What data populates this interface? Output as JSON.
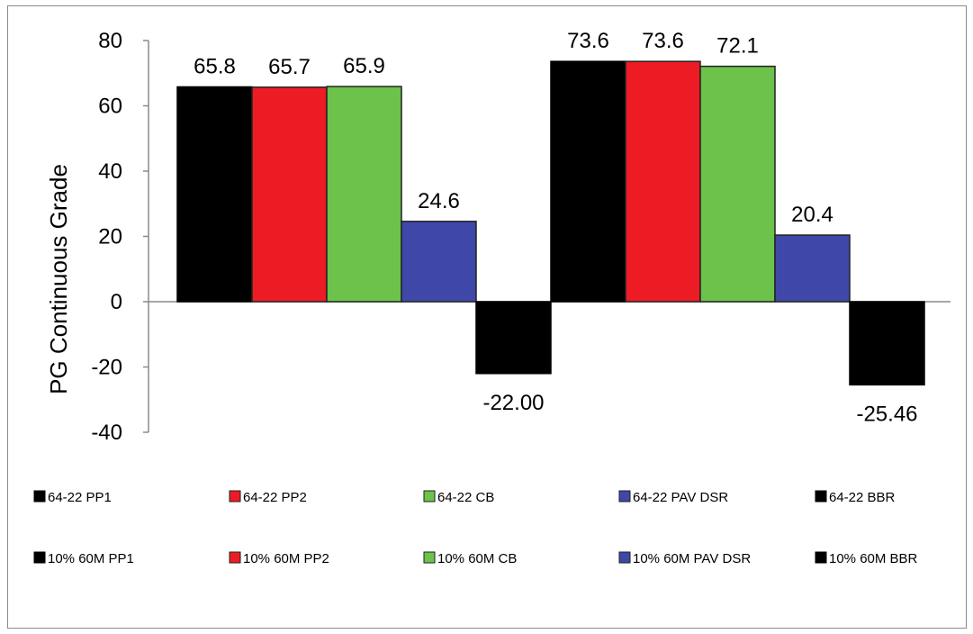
{
  "chart_data": {
    "type": "bar",
    "title": "",
    "xlabel": "",
    "ylabel": "PG Continuous Grade",
    "ylim": [
      -40,
      80
    ],
    "yticks": [
      80,
      60,
      40,
      20,
      0,
      -20,
      -40
    ],
    "grid": false,
    "legend_position": "bottom",
    "groups": [
      {
        "bars": [
          {
            "name": "64-22 PP1",
            "value": 65.8,
            "label": "65.8",
            "color": "#000000"
          },
          {
            "name": "64-22 PP2",
            "value": 65.7,
            "label": "65.7",
            "color": "#ed1c24"
          },
          {
            "name": "64-22 CB",
            "value": 65.9,
            "label": "65.9",
            "color": "#6cc24a"
          },
          {
            "name": "64-22 PAV DSR",
            "value": 24.6,
            "label": "24.6",
            "color": "#3f48a8"
          },
          {
            "name": "64-22 BBR",
            "value": -22.0,
            "label": "-22.00",
            "color": "#000000"
          }
        ]
      },
      {
        "bars": [
          {
            "name": "10% 60M PP1",
            "value": 73.6,
            "label": "73.6",
            "color": "#000000"
          },
          {
            "name": "10% 60M PP2",
            "value": 73.6,
            "label": "73.6",
            "color": "#ed1c24"
          },
          {
            "name": "10% 60M CB",
            "value": 72.1,
            "label": "72.1",
            "color": "#6cc24a"
          },
          {
            "name": "10% 60M PAV DSR",
            "value": 20.4,
            "label": "20.4",
            "color": "#3f48a8"
          },
          {
            "name": "10% 60M BBR",
            "value": -25.46,
            "label": "-25.46",
            "color": "#000000"
          }
        ]
      }
    ],
    "legend": [
      {
        "label": "64-22 PP1",
        "color": "#000000"
      },
      {
        "label": "64-22 PP2",
        "color": "#ed1c24"
      },
      {
        "label": "64-22 CB",
        "color": "#6cc24a"
      },
      {
        "label": "64-22 PAV DSR",
        "color": "#3f48a8"
      },
      {
        "label": "64-22 BBR",
        "color": "#000000"
      },
      {
        "label": "10% 60M PP1",
        "color": "#000000"
      },
      {
        "label": "10% 60M PP2",
        "color": "#ed1c24"
      },
      {
        "label": "10% 60M CB",
        "color": "#6cc24a"
      },
      {
        "label": "10% 60M PAV DSR",
        "color": "#3f48a8"
      },
      {
        "label": "10% 60M BBR",
        "color": "#000000"
      }
    ]
  }
}
